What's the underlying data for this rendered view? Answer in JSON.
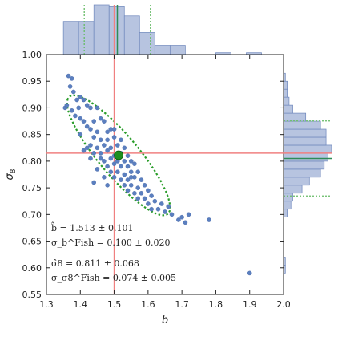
{
  "chart_data": {
    "type": "scatter",
    "xlabel": "b",
    "ylabel": "σ8",
    "xlim": [
      1.3,
      2.0
    ],
    "ylim": [
      0.55,
      1.0
    ],
    "xticks": [
      "1.3",
      "1.4",
      "1.5",
      "1.6",
      "1.7",
      "1.8",
      "1.9",
      "2.0"
    ],
    "yticks": [
      "0.55",
      "0.60",
      "0.65",
      "0.70",
      "0.75",
      "0.80",
      "0.85",
      "0.90",
      "0.95",
      "1.00"
    ],
    "truth": {
      "b": 1.5,
      "sigma8": 0.815
    },
    "best_fit": {
      "b": 1.513,
      "sigma8": 0.811
    },
    "fisher_ellipse": {
      "center": [
        1.513,
        0.811
      ],
      "sigma_b": 0.1,
      "sigma_s8": 0.074,
      "correlation": -0.87
    },
    "annotations": {
      "b_mean": "b̂ = 1.513 ± 0.101",
      "b_fisher": "σ_b^Fish = 0.100 ± 0.020",
      "s8_mean": "σ̂8 = 0.811 ± 0.068",
      "s8_fisher": "σ_σ8^Fish = 0.074 ± 0.005"
    },
    "points": [
      [
        1.355,
        0.9
      ],
      [
        1.365,
        0.96
      ],
      [
        1.375,
        0.955
      ],
      [
        1.37,
        0.94
      ],
      [
        1.38,
        0.93
      ],
      [
        1.36,
        0.905
      ],
      [
        1.39,
        0.915
      ],
      [
        1.4,
        0.92
      ],
      [
        1.41,
        0.915
      ],
      [
        1.375,
        0.895
      ],
      [
        1.385,
        0.885
      ],
      [
        1.395,
        0.9
      ],
      [
        1.42,
        0.905
      ],
      [
        1.43,
        0.9
      ],
      [
        1.45,
        0.9
      ],
      [
        1.4,
        0.88
      ],
      [
        1.41,
        0.875
      ],
      [
        1.44,
        0.875
      ],
      [
        1.46,
        0.88
      ],
      [
        1.47,
        0.875
      ],
      [
        1.42,
        0.865
      ],
      [
        1.43,
        0.86
      ],
      [
        1.45,
        0.855
      ],
      [
        1.48,
        0.855
      ],
      [
        1.49,
        0.86
      ],
      [
        1.5,
        0.86
      ],
      [
        1.4,
        0.85
      ],
      [
        1.44,
        0.845
      ],
      [
        1.46,
        0.84
      ],
      [
        1.48,
        0.84
      ],
      [
        1.5,
        0.845
      ],
      [
        1.52,
        0.84
      ],
      [
        1.43,
        0.83
      ],
      [
        1.45,
        0.825
      ],
      [
        1.47,
        0.83
      ],
      [
        1.49,
        0.825
      ],
      [
        1.51,
        0.83
      ],
      [
        1.53,
        0.825
      ],
      [
        1.41,
        0.82
      ],
      [
        1.44,
        0.815
      ],
      [
        1.46,
        0.815
      ],
      [
        1.48,
        0.82
      ],
      [
        1.5,
        0.81
      ],
      [
        1.52,
        0.815
      ],
      [
        1.54,
        0.81
      ],
      [
        1.43,
        0.805
      ],
      [
        1.47,
        0.8
      ],
      [
        1.49,
        0.805
      ],
      [
        1.51,
        0.8
      ],
      [
        1.53,
        0.8
      ],
      [
        1.55,
        0.8
      ],
      [
        1.48,
        0.79
      ],
      [
        1.5,
        0.795
      ],
      [
        1.52,
        0.79
      ],
      [
        1.54,
        0.79
      ],
      [
        1.56,
        0.795
      ],
      [
        1.45,
        0.785
      ],
      [
        1.49,
        0.78
      ],
      [
        1.51,
        0.78
      ],
      [
        1.53,
        0.775
      ],
      [
        1.55,
        0.78
      ],
      [
        1.57,
        0.78
      ],
      [
        1.47,
        0.77
      ],
      [
        1.5,
        0.77
      ],
      [
        1.52,
        0.765
      ],
      [
        1.54,
        0.765
      ],
      [
        1.56,
        0.77
      ],
      [
        1.58,
        0.765
      ],
      [
        1.44,
        0.76
      ],
      [
        1.48,
        0.755
      ],
      [
        1.53,
        0.755
      ],
      [
        1.55,
        0.755
      ],
      [
        1.57,
        0.75
      ],
      [
        1.59,
        0.755
      ],
      [
        1.54,
        0.745
      ],
      [
        1.56,
        0.74
      ],
      [
        1.58,
        0.74
      ],
      [
        1.6,
        0.745
      ],
      [
        1.57,
        0.73
      ],
      [
        1.59,
        0.73
      ],
      [
        1.61,
        0.735
      ],
      [
        1.6,
        0.72
      ],
      [
        1.62,
        0.725
      ],
      [
        1.64,
        0.72
      ],
      [
        1.61,
        0.71
      ],
      [
        1.63,
        0.71
      ],
      [
        1.66,
        0.715
      ],
      [
        1.65,
        0.705
      ],
      [
        1.67,
        0.7
      ],
      [
        1.7,
        0.695
      ],
      [
        1.72,
        0.7
      ],
      [
        1.71,
        0.685
      ],
      [
        1.69,
        0.69
      ],
      [
        1.78,
        0.69
      ],
      [
        1.9,
        0.59
      ],
      [
        1.42,
        0.825
      ],
      [
        1.46,
        0.805
      ],
      [
        1.55,
        0.77
      ]
    ],
    "hist_b": {
      "edges": [
        1.35,
        1.395,
        1.44,
        1.485,
        1.53,
        1.575,
        1.62,
        1.665,
        1.71,
        1.755,
        1.8,
        1.845,
        1.89,
        1.935
      ],
      "counts": [
        18,
        18,
        27,
        26,
        21,
        12,
        5,
        5,
        0,
        0,
        1,
        0,
        1
      ]
    },
    "hist_s8": {
      "edges": [
        0.59,
        0.605,
        0.62,
        0.635,
        0.65,
        0.665,
        0.68,
        0.695,
        0.71,
        0.725,
        0.74,
        0.755,
        0.77,
        0.785,
        0.8,
        0.815,
        0.83,
        0.845,
        0.86,
        0.875,
        0.89,
        0.905,
        0.92,
        0.935,
        0.95,
        0.965
      ],
      "counts": [
        1,
        1,
        0,
        0,
        0,
        0,
        0,
        2,
        4,
        5,
        10,
        14,
        20,
        22,
        24,
        26,
        23,
        23,
        20,
        12,
        5,
        3,
        2,
        2,
        1
      ]
    },
    "colors": {
      "points": "#5b7fbf",
      "truth_line": "#f08080",
      "best_fit": "#1e8f1e",
      "ellipse": "#2a9d2a",
      "hist_fill": "#b7c4e0",
      "hist_edge": "#6d86bb",
      "hist_mean": "#2e8b57",
      "hist_std": "#66bb66"
    },
    "grid": false,
    "legend": "none"
  }
}
